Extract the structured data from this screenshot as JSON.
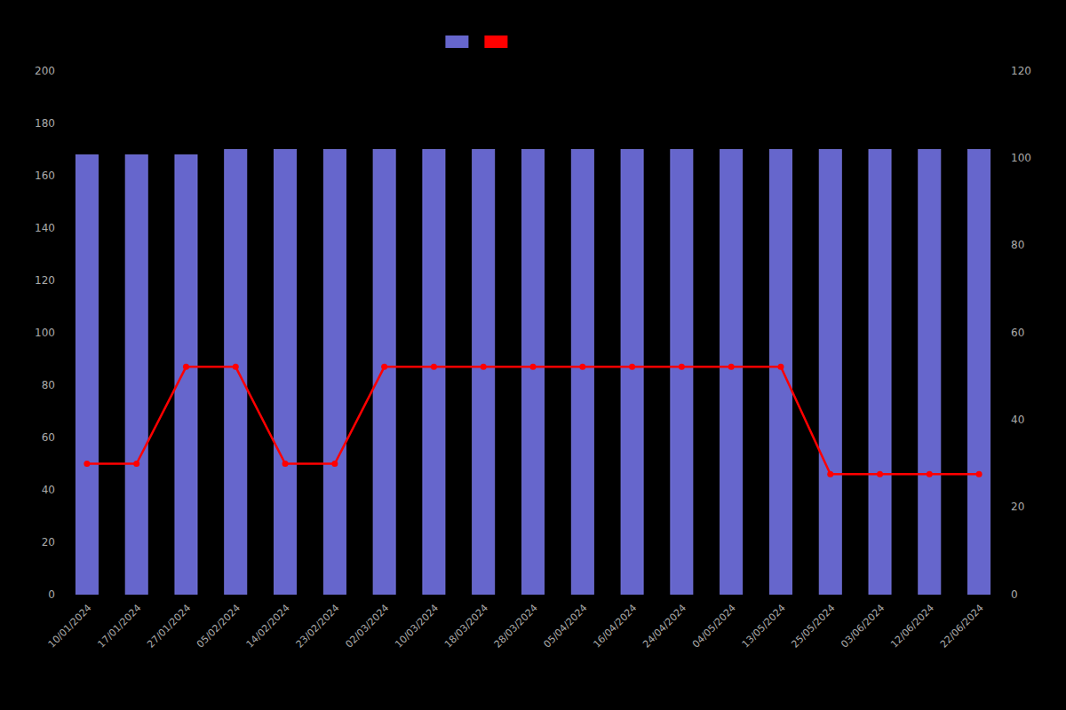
{
  "chart_data": {
    "type": "bar",
    "categories": [
      "10/01/2024",
      "17/01/2024",
      "27/01/2024",
      "05/02/2024",
      "14/02/2024",
      "23/02/2024",
      "02/03/2024",
      "10/03/2024",
      "18/03/2024",
      "28/03/2024",
      "05/04/2024",
      "16/04/2024",
      "24/04/2024",
      "04/05/2024",
      "13/05/2024",
      "25/05/2024",
      "03/06/2024",
      "12/06/2024",
      "22/06/2024"
    ],
    "series": [
      {
        "type": "bar",
        "color": "#6666cc",
        "values": [
          168,
          168,
          168,
          170,
          170,
          170,
          170,
          170,
          170,
          170,
          170,
          170,
          170,
          170,
          170,
          170,
          170,
          170,
          170
        ]
      },
      {
        "type": "line",
        "color": "#ff0000",
        "marker": "circle",
        "values": [
          50,
          50,
          87,
          87,
          50,
          50,
          87,
          87,
          87,
          87,
          87,
          87,
          87,
          87,
          87,
          46,
          46,
          46,
          46
        ]
      }
    ],
    "ylim": [
      0,
      200
    ],
    "yticks": [
      0,
      20,
      40,
      60,
      80,
      100,
      120,
      140,
      160,
      180,
      200
    ],
    "y2lim": [
      0,
      120
    ],
    "y2ticks": [
      0,
      20,
      40,
      60,
      80,
      100,
      120
    ],
    "grid": false,
    "legend": "top"
  }
}
